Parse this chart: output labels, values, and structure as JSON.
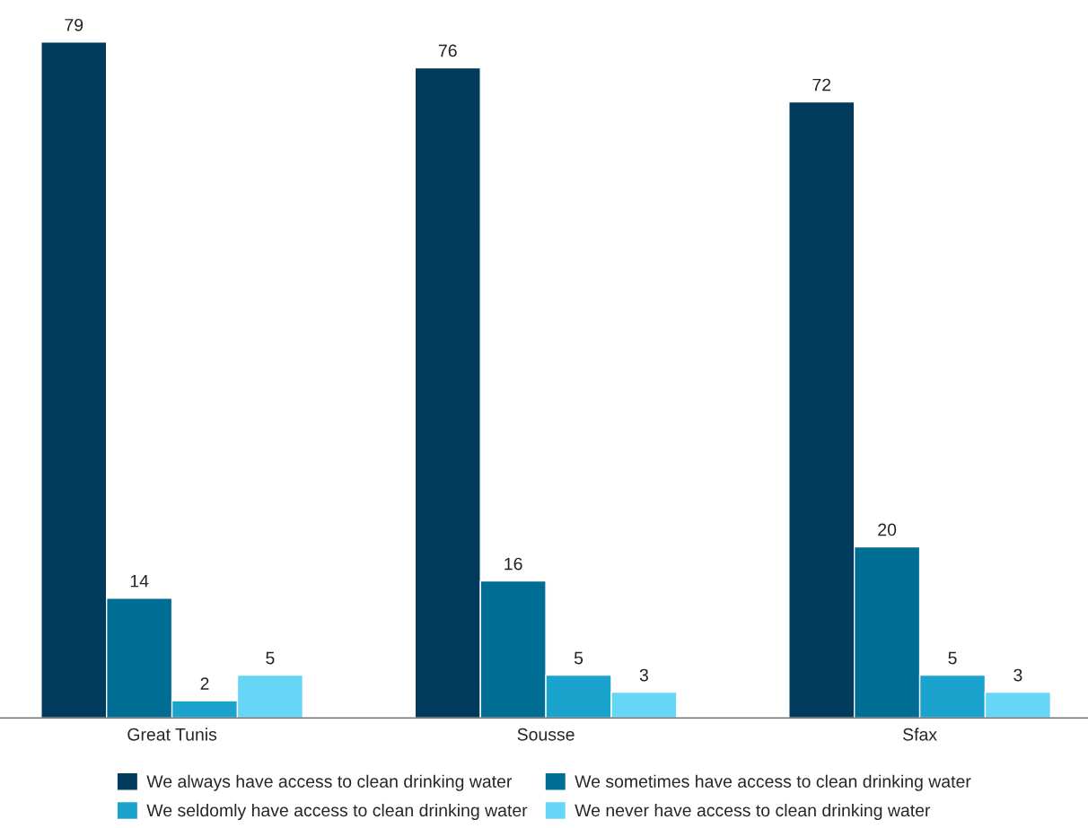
{
  "chart_data": {
    "type": "bar",
    "categories": [
      "Great Tunis",
      "Sousse",
      "Sfax"
    ],
    "series": [
      {
        "name": "We always have access to clean drinking water",
        "color": "#003a5c",
        "values": [
          79,
          76,
          72
        ]
      },
      {
        "name": "We sometimes have access to clean drinking water",
        "color": "#006d94",
        "values": [
          14,
          16,
          20
        ]
      },
      {
        "name": "We seldomly have access to clean drinking water",
        "color": "#1aa3cc",
        "values": [
          2,
          5,
          5
        ]
      },
      {
        "name": "We never have access to clean drinking water",
        "color": "#66d6f7",
        "values": [
          5,
          3,
          3
        ]
      }
    ],
    "data_labels": true,
    "grid": false,
    "legend": "bottom"
  }
}
